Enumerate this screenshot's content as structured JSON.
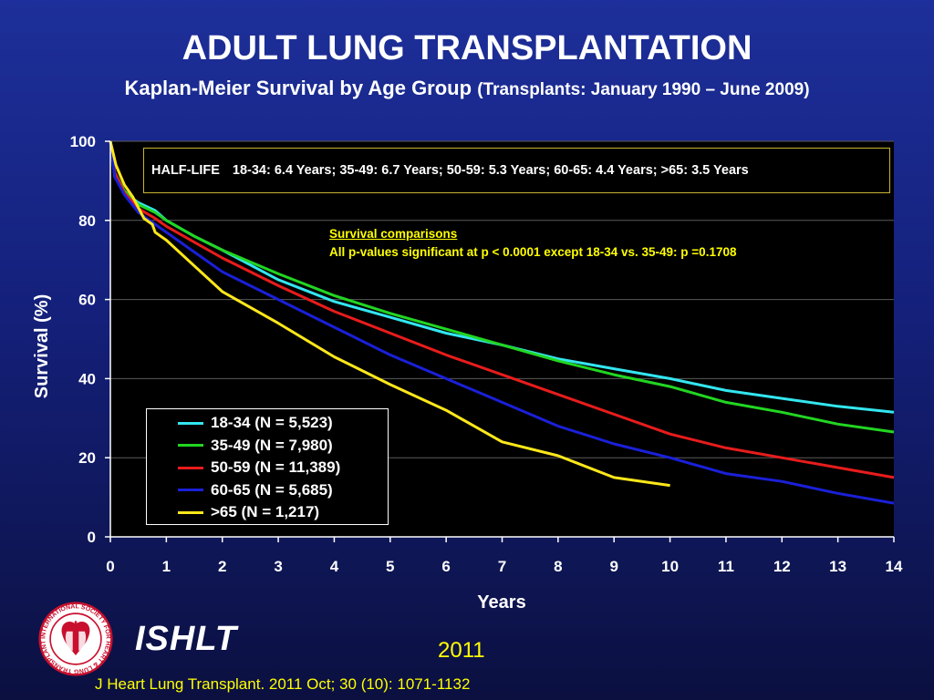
{
  "slide": {
    "title": "ADULT LUNG TRANSPLANTATION",
    "subtitle_main": "Kaplan-Meier Survival by Age Group",
    "subtitle_note": "(Transplants: January 1990 – June 2009)",
    "half_life_label": "HALF-LIFE",
    "half_life_text": "18-34: 6.4 Years; 35-49: 6.7 Years; 50-59: 5.3 Years; 60-65: 4.4 Years; >65: 3.5 Years",
    "comparisons_title": "Survival comparisons",
    "comparisons_text": "All p-values significant at p < 0.0001 except 18-34 vs. 35-49: p =0.1708",
    "org": "ISHLT",
    "year": "2011",
    "citation": "J Heart Lung Transplant. 2011 Oct; 30 (10): 1071-1132",
    "logo_ring_text": "INTERNATIONAL SOCIETY FOR HEART & LUNG TRANSPLANTATION"
  },
  "chart_data": {
    "type": "line",
    "xlabel": "Years",
    "ylabel": "Survival (%)",
    "xlim": [
      0,
      14
    ],
    "ylim": [
      0,
      100
    ],
    "xticks": [
      0,
      1,
      2,
      3,
      4,
      5,
      6,
      7,
      8,
      9,
      10,
      11,
      12,
      13,
      14
    ],
    "yticks": [
      0,
      20,
      40,
      60,
      80,
      100
    ],
    "grid": "horizontal",
    "legend_position": "bottom-left",
    "colors": {
      "background": "#000000",
      "axis": "#ffffff",
      "grid": "#5a5a5a"
    },
    "series": [
      {
        "name": "18-34 (N = 5,523)",
        "color": "#33e6f0",
        "x": [
          0,
          0.08,
          0.25,
          0.5,
          0.8,
          1,
          1.5,
          2,
          3,
          4,
          5,
          6,
          7,
          8,
          9,
          10,
          11,
          12,
          13,
          14
        ],
        "y": [
          100,
          91,
          87,
          84.5,
          82.5,
          80,
          76,
          72.5,
          65,
          59.5,
          55.5,
          51.5,
          48.5,
          45,
          42.5,
          40,
          37,
          35,
          33,
          31.5
        ]
      },
      {
        "name": "35-49 (N = 7,980)",
        "color": "#22d622",
        "x": [
          0,
          0.08,
          0.25,
          0.5,
          0.8,
          1,
          1.5,
          2,
          3,
          4,
          5,
          6,
          7,
          8,
          9,
          10,
          11,
          12,
          13,
          14
        ],
        "y": [
          100,
          92,
          87.5,
          84,
          82,
          80,
          76,
          72.5,
          66.5,
          61,
          56.5,
          52.5,
          48.5,
          44.5,
          41,
          38,
          34,
          31.5,
          28.5,
          26.5
        ]
      },
      {
        "name": "50-59 (N = 11,389)",
        "color": "#e81c1c",
        "x": [
          0,
          0.08,
          0.25,
          0.5,
          0.8,
          1,
          1.5,
          2,
          3,
          4,
          5,
          6,
          7,
          8,
          9,
          10,
          11,
          12,
          13,
          14
        ],
        "y": [
          100,
          92,
          87,
          83,
          80.5,
          78.5,
          74.5,
          70.5,
          63.5,
          57,
          51.5,
          46,
          41,
          36,
          31,
          26,
          22.5,
          20,
          17.5,
          15
        ]
      },
      {
        "name": "60-65 (N = 5,685)",
        "color": "#1a20d8",
        "x": [
          0,
          0.08,
          0.25,
          0.5,
          0.8,
          1,
          1.5,
          2,
          3,
          4,
          5,
          6,
          7,
          8,
          9,
          10,
          11,
          12,
          13,
          14
        ],
        "y": [
          100,
          91,
          86.5,
          82,
          79,
          77,
          72,
          67,
          60,
          53,
          46,
          40,
          34,
          28,
          23.5,
          20,
          16,
          14,
          11,
          8.5
        ]
      },
      {
        "name": ">65 (N = 1,217)",
        "color": "#ffe81a",
        "x": [
          0,
          0.1,
          0.25,
          0.4,
          0.6,
          0.75,
          0.8,
          0.9,
          1,
          1.5,
          2,
          3,
          4,
          5,
          6,
          7,
          8,
          9,
          10
        ],
        "y": [
          100,
          94,
          89,
          86,
          80.5,
          79,
          77,
          76,
          75,
          68.5,
          62,
          54,
          45.5,
          38.5,
          32,
          24,
          20.5,
          15,
          13
        ]
      }
    ]
  }
}
